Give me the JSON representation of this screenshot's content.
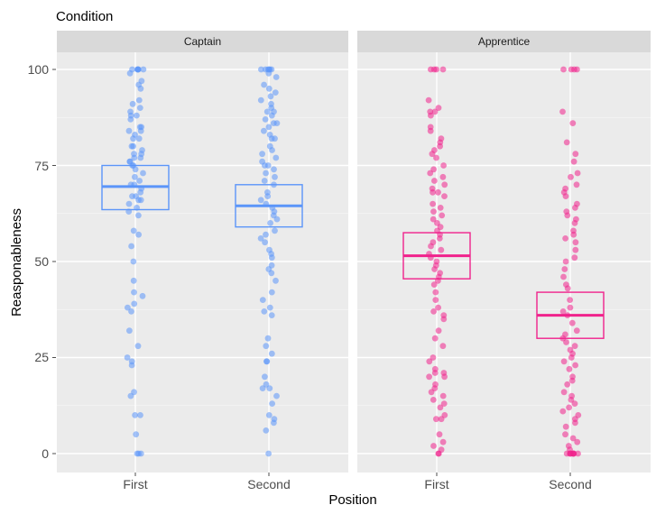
{
  "chart_data": {
    "type": "scatter",
    "title": "Condition",
    "xlabel": "Position",
    "ylabel": "Reasponableness",
    "ylim": [
      -5,
      110
    ],
    "yticks": [
      0,
      25,
      50,
      75,
      100
    ],
    "categories": [
      "First",
      "Second"
    ],
    "overlay": "boxplot of jittered individual responses",
    "panels": [
      {
        "name": "Captain",
        "color": "#5b95f9",
        "groups": [
          {
            "category": "First",
            "box": {
              "q1": 63.5,
              "median": 69.5,
              "q3": 75
            },
            "points": [
              100,
              100,
              100,
              100,
              100,
              100,
              99,
              97,
              96,
              95,
              92,
              91,
              90,
              89,
              88,
              88,
              87,
              85,
              85,
              84,
              84,
              83,
              82,
              82,
              80,
              80,
              79,
              78,
              78,
              77,
              77,
              76,
              76,
              75,
              75,
              74,
              73,
              72,
              71,
              70,
              70,
              69,
              68,
              67,
              67,
              66,
              66,
              65,
              64,
              63,
              62,
              58,
              57,
              54,
              50,
              45,
              42,
              41,
              39,
              38,
              37,
              32,
              28,
              25,
              24,
              23,
              16,
              15,
              10,
              10,
              5,
              0,
              0,
              0
            ]
          },
          {
            "category": "Second",
            "box": {
              "q1": 59,
              "median": 64.5,
              "q3": 70
            },
            "points": [
              100,
              100,
              100,
              100,
              100,
              100,
              99,
              98,
              96,
              95,
              94,
              93,
              92,
              91,
              90,
              89,
              89,
              88,
              87,
              86,
              86,
              85,
              84,
              83,
              82,
              82,
              80,
              79,
              78,
              77,
              76,
              75,
              75,
              74,
              73,
              72,
              71,
              70,
              68,
              67,
              66,
              65,
              64,
              63,
              62,
              61,
              60,
              58,
              57,
              56,
              55,
              53,
              52,
              51,
              49,
              48,
              47,
              45,
              42,
              40,
              38,
              37,
              36,
              30,
              28,
              26,
              24,
              24,
              20,
              18,
              17,
              17,
              15,
              13,
              10,
              9,
              8,
              6,
              0
            ]
          }
        ]
      },
      {
        "name": "Apprentice",
        "color": "#f0228c",
        "groups": [
          {
            "category": "First",
            "box": {
              "q1": 45.5,
              "median": 51.5,
              "q3": 57.5
            },
            "points": [
              100,
              100,
              100,
              100,
              92,
              90,
              89,
              89,
              88,
              85,
              84,
              82,
              81,
              80,
              79,
              78,
              77,
              75,
              74,
              73,
              72,
              71,
              70,
              69,
              68,
              68,
              67,
              65,
              64,
              63,
              62,
              61,
              60,
              59,
              58,
              57,
              56,
              55,
              54,
              53,
              52,
              51,
              50,
              49,
              48,
              47,
              46,
              45,
              44,
              42,
              40,
              38,
              37,
              36,
              35,
              32,
              30,
              28,
              25,
              24,
              22,
              21,
              21,
              20,
              20,
              18,
              17,
              16,
              15,
              14,
              13,
              12,
              10,
              9,
              9,
              5,
              3,
              2,
              1,
              0,
              0
            ]
          },
          {
            "category": "Second",
            "box": {
              "q1": 30,
              "median": 36,
              "q3": 42
            },
            "points": [
              100,
              100,
              100,
              100,
              89,
              86,
              81,
              78,
              76,
              73,
              72,
              70,
              69,
              68,
              67,
              65,
              64,
              63,
              62,
              61,
              60,
              58,
              57,
              56,
              55,
              53,
              51,
              50,
              48,
              46,
              44,
              43,
              40,
              38,
              37,
              36,
              34,
              32,
              31,
              30,
              29,
              28,
              27,
              26,
              25,
              24,
              23,
              22,
              20,
              19,
              18,
              16,
              15,
              14,
              13,
              12,
              11,
              10,
              9,
              8,
              7,
              5,
              4,
              3,
              2,
              1,
              0,
              0,
              0,
              0,
              0,
              0,
              0,
              0,
              0
            ]
          }
        ]
      }
    ]
  }
}
